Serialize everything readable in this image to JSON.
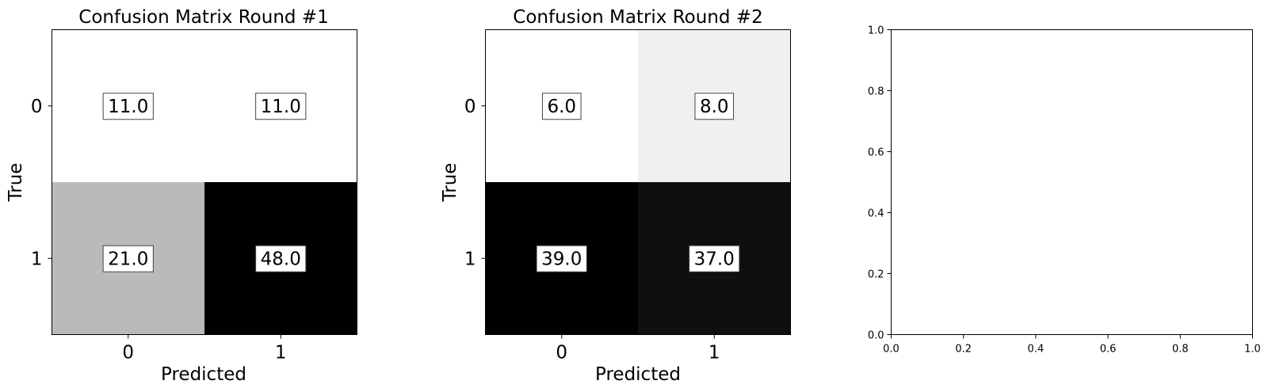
{
  "chart_data": [
    {
      "type": "heatmap",
      "title": "Confusion Matrix Round #1",
      "xlabel": "Predicted",
      "ylabel": "True",
      "x_categories": [
        "0",
        "1"
      ],
      "y_categories": [
        "0",
        "1"
      ],
      "values": [
        [
          11.0,
          11.0
        ],
        [
          21.0,
          48.0
        ]
      ],
      "cell_labels": [
        [
          "11.0",
          "11.0"
        ],
        [
          "21.0",
          "48.0"
        ]
      ],
      "colormap": "greys"
    },
    {
      "type": "heatmap",
      "title": "Confusion Matrix Round #2",
      "xlabel": "Predicted",
      "ylabel": "True",
      "x_categories": [
        "0",
        "1"
      ],
      "y_categories": [
        "0",
        "1"
      ],
      "values": [
        [
          6.0,
          8.0
        ],
        [
          39.0,
          37.0
        ]
      ],
      "cell_labels": [
        [
          "6.0",
          "8.0"
        ],
        [
          "39.0",
          "37.0"
        ]
      ],
      "colormap": "greys"
    },
    {
      "type": "scatter",
      "title": "",
      "xlabel": "",
      "ylabel": "",
      "xlim": [
        0.0,
        1.0
      ],
      "ylim": [
        0.0,
        1.0
      ],
      "x_ticks": [
        "0.0",
        "0.2",
        "0.4",
        "0.6",
        "0.8",
        "1.0"
      ],
      "y_ticks": [
        "0.0",
        "0.2",
        "0.4",
        "0.6",
        "0.8",
        "1.0"
      ],
      "series": []
    }
  ]
}
